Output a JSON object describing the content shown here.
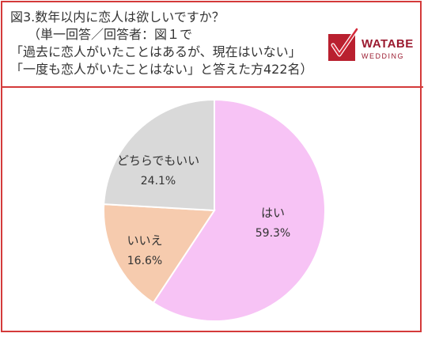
{
  "header": {
    "title_lines": [
      "図3.数年以内に恋人は欲しいですか？",
      "（単一回答／回答者：図１で",
      "「過去に恋人がいたことはあるが、現在はいない」",
      "「一度も恋人がいたことはない」と答えた方422名）"
    ]
  },
  "logo": {
    "word": "WATABE",
    "sub": "WEDDING",
    "color": "#9b1b30",
    "accent": "#d42a3a"
  },
  "chart_data": {
    "type": "pie",
    "title": "",
    "slices": [
      {
        "label": "はい",
        "value": 59.3,
        "display": "59.3%",
        "color": "#f7c3f5"
      },
      {
        "label": "いいえ",
        "value": 16.6,
        "display": "16.6%",
        "color": "#f6cbae"
      },
      {
        "label": "どちらでもいい",
        "value": 24.1,
        "display": "24.1%",
        "color": "#d9d9d9"
      }
    ],
    "start": "12 o'clock",
    "direction": "clockwise"
  }
}
